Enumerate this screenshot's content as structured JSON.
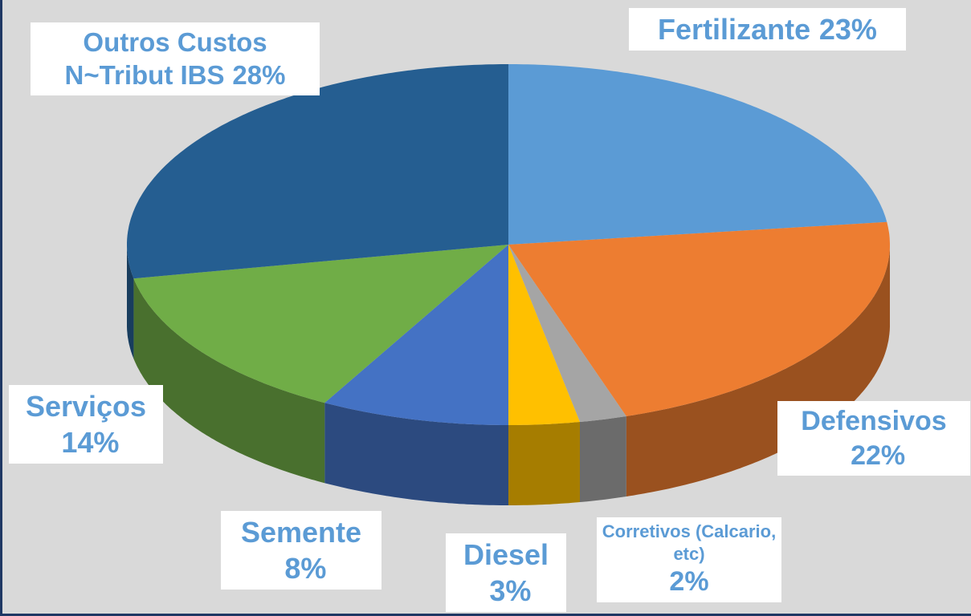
{
  "chart_data": {
    "type": "pie",
    "categories": [
      "Fertilizante",
      "Defensivos",
      "Corretivos (Calcario, etc)",
      "Diesel",
      "Semente",
      "Serviços",
      "Outros Custos N~Tribut IBS"
    ],
    "values": [
      23,
      22,
      2,
      3,
      8,
      14,
      28
    ],
    "value_labels": [
      "23%",
      "22%",
      "2%",
      "3%",
      "8%",
      "14%",
      "28%"
    ],
    "colors": [
      "#5b9bd5",
      "#ed7d31",
      "#a5a5a5",
      "#ffc000",
      "#4472c4",
      "#70ad47",
      "#255e91"
    ],
    "label_color": "#5b9bd5"
  }
}
